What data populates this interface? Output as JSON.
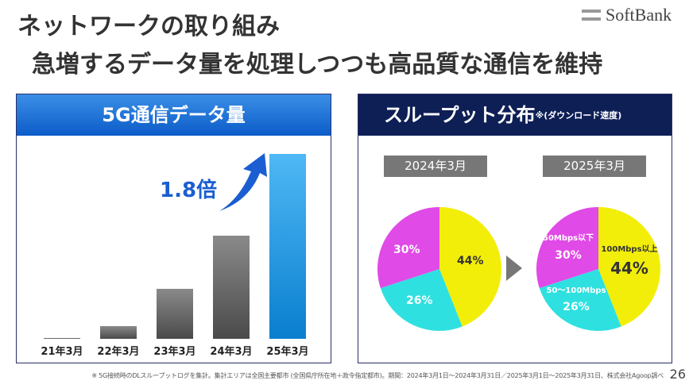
{
  "title": "ネットワークの取り組み",
  "subtitle": "急増するデータ量を処理しつつも高品質な通信を維持",
  "logo": "SoftBank",
  "left_panel": {
    "header": "5G通信データ量",
    "multiplier": "1.8倍"
  },
  "right_panel": {
    "header": "スループット分布",
    "note_mark": "※",
    "header_sub": "(ダウンロード速度)",
    "years": [
      "2024年3月",
      "2025年3月"
    ],
    "slice_labels": {
      "high": "100Mbps以上",
      "mid": "50〜100Mbps",
      "low": "50Mbps以下"
    }
  },
  "chart_data": [
    {
      "type": "bar",
      "title": "5G通信データ量",
      "categories": [
        "21年3月",
        "22年3月",
        "23年3月",
        "24年3月",
        "25年3月"
      ],
      "values": [
        0.5,
        7,
        27,
        56,
        100
      ],
      "ylabel": "",
      "note": "relative, unlabeled",
      "colors": [
        "#666",
        "#666",
        "#666",
        "#666",
        "#2a9be8"
      ]
    },
    {
      "type": "pie",
      "title": "2024年3月",
      "labels": [
        "100Mbps以上",
        "50〜100Mbps",
        "50Mbps以下"
      ],
      "values": [
        44,
        26,
        30
      ],
      "display": [
        "44%",
        "26%",
        "30%"
      ],
      "colors": [
        "#f2ee0a",
        "#2fe0e0",
        "#e04ae6"
      ]
    },
    {
      "type": "pie",
      "title": "2025年3月",
      "labels": [
        "100Mbps以上",
        "50〜100Mbps",
        "50Mbps以下"
      ],
      "values": [
        44,
        26,
        30
      ],
      "display": [
        "44%",
        "26%",
        "30%"
      ],
      "colors": [
        "#f2ee0a",
        "#2fe0e0",
        "#e04ae6"
      ]
    }
  ],
  "footnote": "※ 5G接続時のDLスループットログを集計。集計エリアは全国主要都市 (全国県庁所在地＋政令指定都市)。期間：2024年3月1日〜2024年3月31日／2025年3月1日〜2025年3月31日、株式会社Agoop調べ",
  "page_number": "26"
}
